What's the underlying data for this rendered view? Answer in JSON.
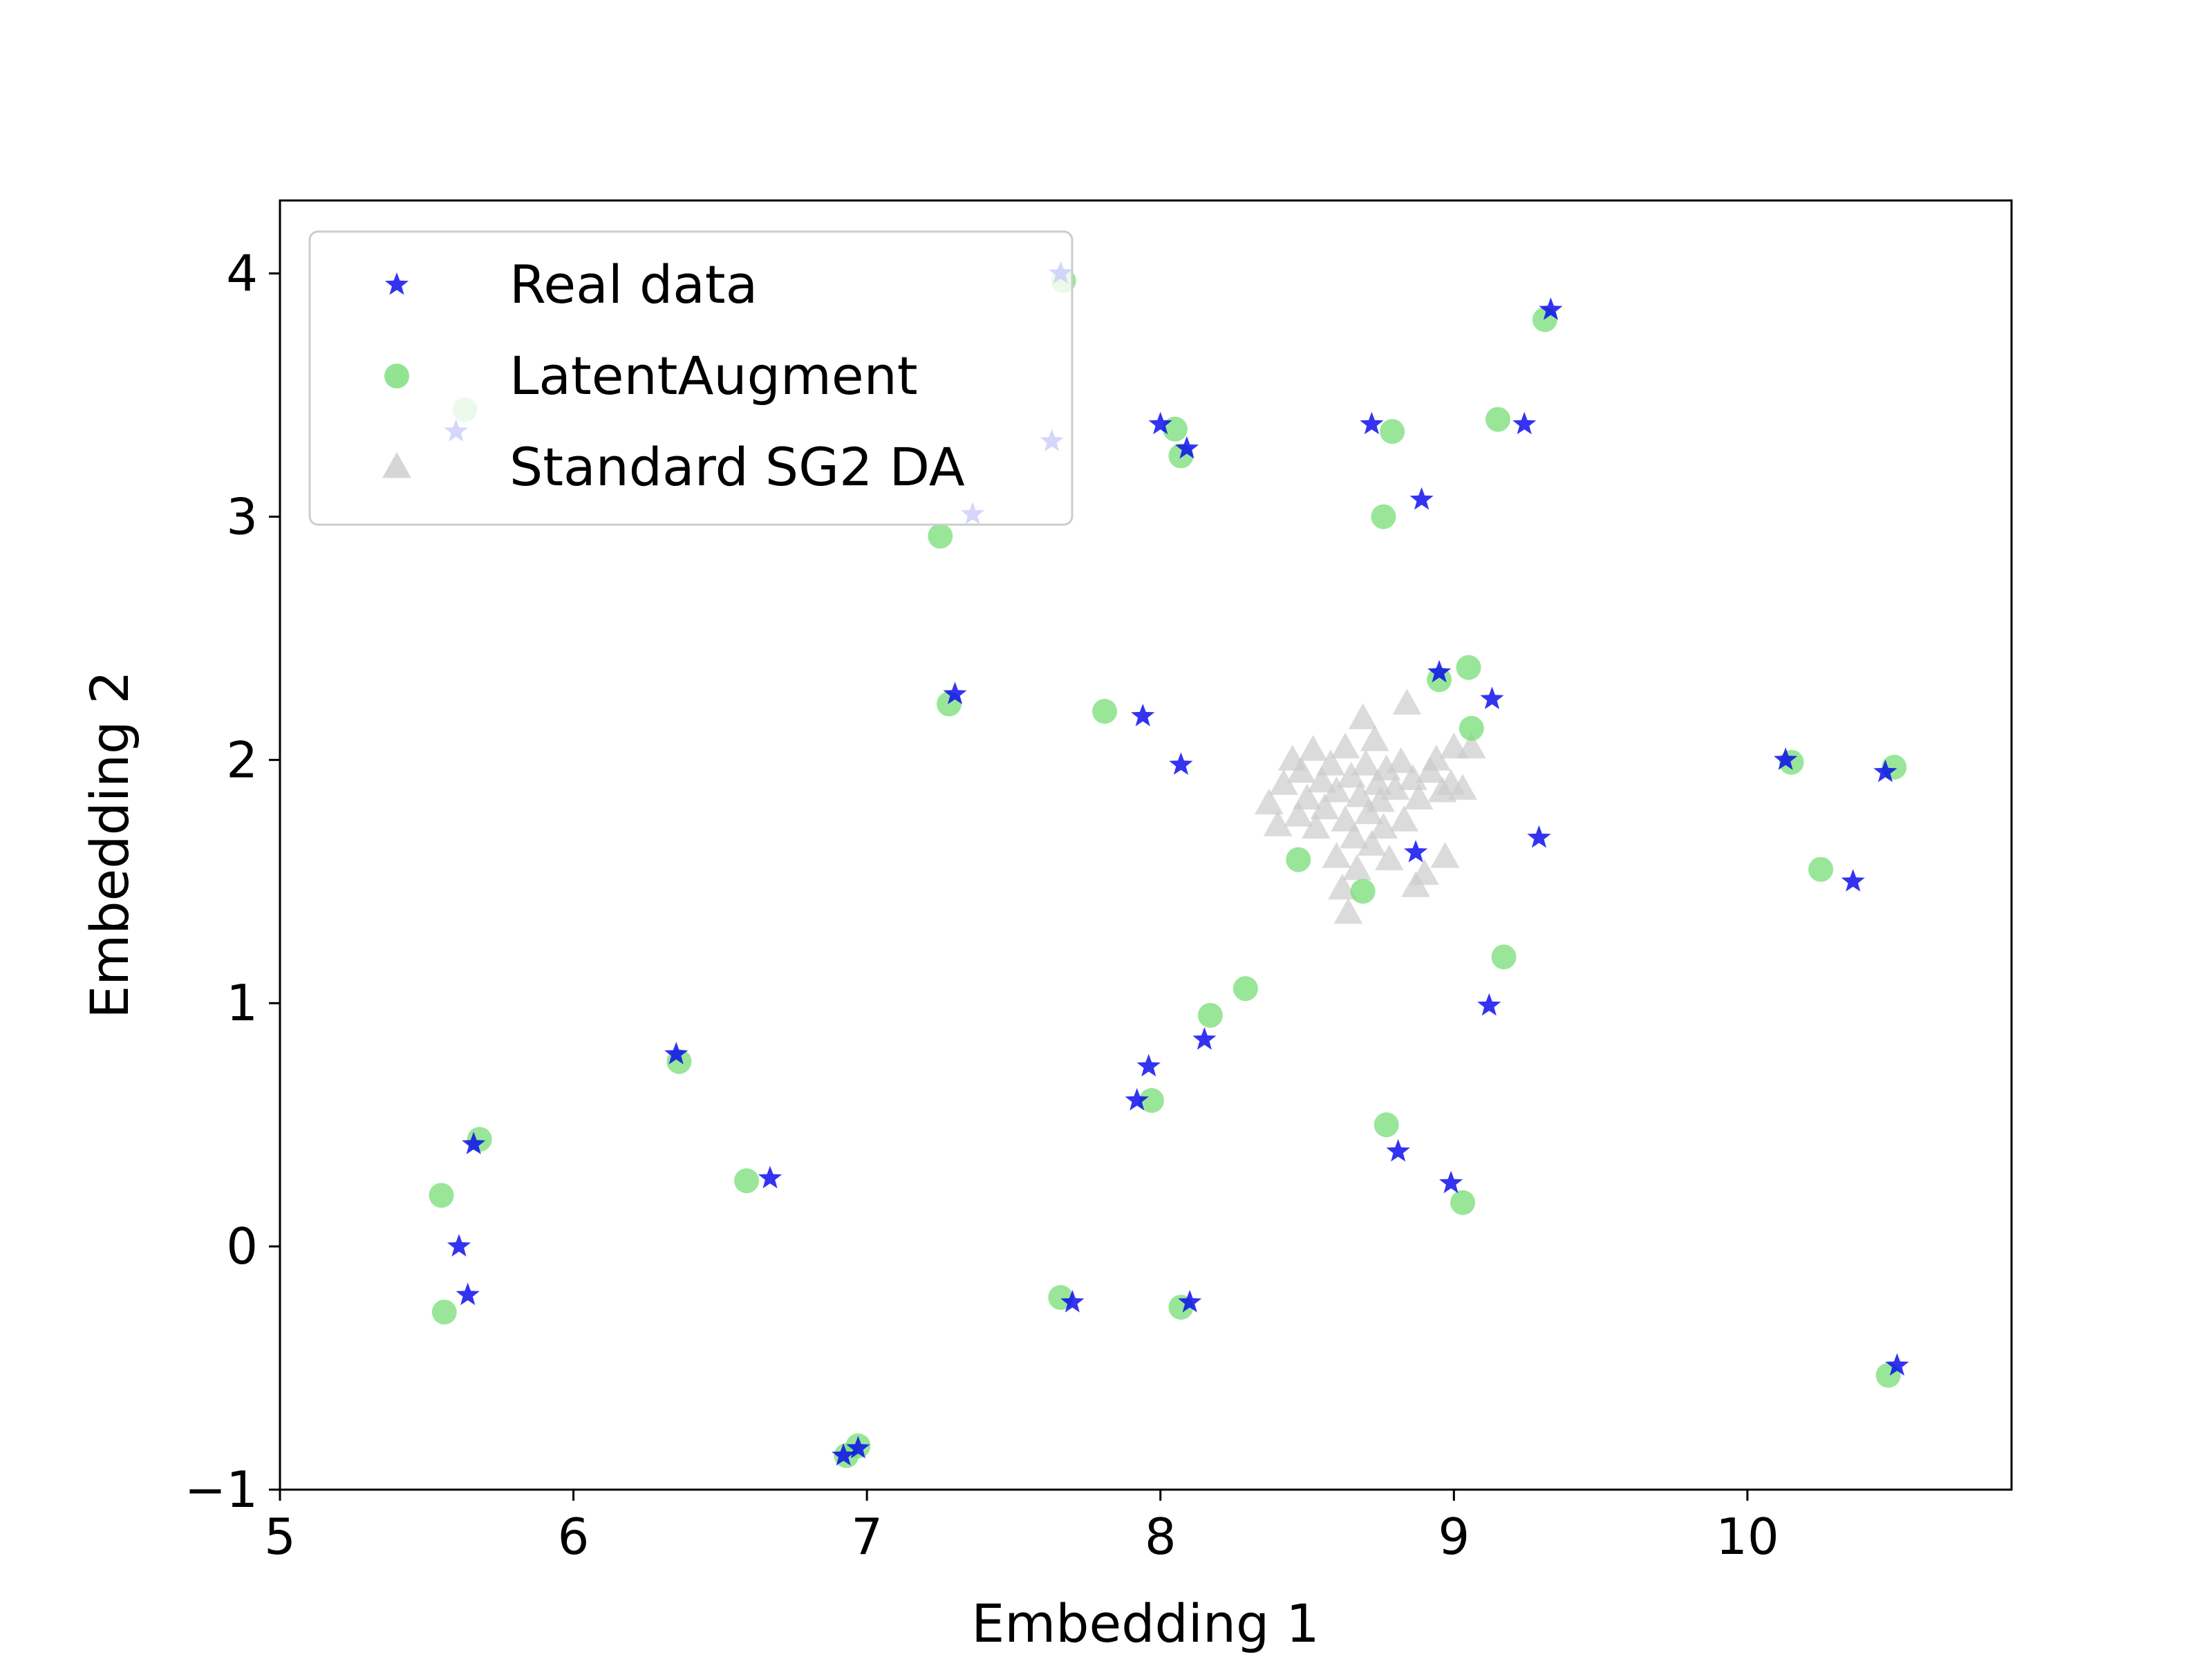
{
  "chart_data": {
    "type": "scatter",
    "title": "",
    "xlabel": "Embedding 1",
    "ylabel": "Embedding 2",
    "xlim": [
      5,
      10.9
    ],
    "ylim": [
      -1,
      4.3
    ],
    "xticks": [
      5,
      6,
      7,
      8,
      9,
      10
    ],
    "yticks": [
      -1,
      0,
      1,
      2,
      3,
      4
    ],
    "xtick_labels": [
      "5",
      "6",
      "7",
      "8",
      "9",
      "10"
    ],
    "ytick_labels": [
      "−1",
      "0",
      "1",
      "2",
      "3",
      "4"
    ],
    "grid": false,
    "legend": {
      "location": "upper-left"
    },
    "series": [
      {
        "name": "Real data",
        "marker": "star",
        "color": "#0000ee",
        "alpha": 0.8,
        "points": [
          [
            5.6,
            3.35
          ],
          [
            5.61,
            0.0
          ],
          [
            5.64,
            -0.2
          ],
          [
            5.66,
            0.42
          ],
          [
            6.35,
            0.79
          ],
          [
            6.67,
            0.28
          ],
          [
            6.92,
            -0.86
          ],
          [
            6.97,
            -0.83
          ],
          [
            7.3,
            2.27
          ],
          [
            7.36,
            3.01
          ],
          [
            7.63,
            3.31
          ],
          [
            7.66,
            4.0
          ],
          [
            7.7,
            -0.23
          ],
          [
            7.92,
            0.6
          ],
          [
            7.94,
            2.18
          ],
          [
            7.96,
            0.74
          ],
          [
            8.0,
            3.38
          ],
          [
            8.07,
            1.98
          ],
          [
            8.09,
            3.28
          ],
          [
            8.1,
            -0.23
          ],
          [
            8.15,
            0.85
          ],
          [
            8.72,
            3.38
          ],
          [
            8.81,
            0.39
          ],
          [
            8.87,
            1.62
          ],
          [
            8.89,
            3.07
          ],
          [
            8.95,
            2.36
          ],
          [
            8.99,
            0.26
          ],
          [
            9.12,
            0.99
          ],
          [
            9.13,
            2.25
          ],
          [
            9.24,
            3.38
          ],
          [
            9.29,
            1.68
          ],
          [
            9.33,
            3.85
          ],
          [
            10.13,
            2.0
          ],
          [
            10.36,
            1.5
          ],
          [
            10.47,
            1.95
          ],
          [
            10.51,
            -0.49
          ]
        ]
      },
      {
        "name": "LatentAugment",
        "marker": "circle",
        "color": "#77dd77",
        "alpha": 0.75,
        "points": [
          [
            5.55,
            0.21
          ],
          [
            5.56,
            -0.27
          ],
          [
            5.63,
            3.44
          ],
          [
            5.68,
            0.44
          ],
          [
            6.36,
            0.76
          ],
          [
            6.59,
            0.27
          ],
          [
            6.93,
            -0.86
          ],
          [
            6.97,
            -0.82
          ],
          [
            7.25,
            2.92
          ],
          [
            7.28,
            2.23
          ],
          [
            7.66,
            -0.21
          ],
          [
            7.67,
            3.97
          ],
          [
            7.81,
            2.2
          ],
          [
            7.97,
            0.6
          ],
          [
            8.05,
            3.36
          ],
          [
            8.07,
            3.25
          ],
          [
            8.07,
            -0.25
          ],
          [
            8.17,
            0.95
          ],
          [
            8.29,
            1.06
          ],
          [
            8.47,
            1.59
          ],
          [
            8.69,
            1.46
          ],
          [
            8.76,
            3.0
          ],
          [
            8.77,
            0.5
          ],
          [
            8.79,
            3.35
          ],
          [
            8.95,
            2.33
          ],
          [
            9.03,
            0.18
          ],
          [
            9.05,
            2.38
          ],
          [
            9.06,
            2.13
          ],
          [
            9.15,
            3.4
          ],
          [
            9.17,
            1.19
          ],
          [
            9.31,
            3.81
          ],
          [
            10.15,
            1.99
          ],
          [
            10.25,
            1.55
          ],
          [
            10.48,
            -0.53
          ],
          [
            10.5,
            1.97
          ]
        ]
      },
      {
        "name": "Standard SG2 DA",
        "marker": "triangle",
        "color": "#cccccc",
        "alpha": 0.7,
        "points": [
          [
            8.37,
            1.82
          ],
          [
            8.4,
            1.73
          ],
          [
            8.42,
            1.9
          ],
          [
            8.45,
            2.0
          ],
          [
            8.47,
            1.77
          ],
          [
            8.48,
            1.95
          ],
          [
            8.5,
            1.84
          ],
          [
            8.52,
            2.04
          ],
          [
            8.53,
            1.72
          ],
          [
            8.55,
            1.91
          ],
          [
            8.56,
            1.8
          ],
          [
            8.58,
            1.98
          ],
          [
            8.6,
            1.6
          ],
          [
            8.6,
            1.87
          ],
          [
            8.62,
            1.47
          ],
          [
            8.63,
            2.05
          ],
          [
            8.63,
            1.75
          ],
          [
            8.64,
            1.37
          ],
          [
            8.65,
            1.93
          ],
          [
            8.66,
            1.68
          ],
          [
            8.67,
            1.55
          ],
          [
            8.68,
            1.85
          ],
          [
            8.69,
            2.17
          ],
          [
            8.7,
            1.98
          ],
          [
            8.71,
            1.78
          ],
          [
            8.72,
            1.65
          ],
          [
            8.73,
            2.08
          ],
          [
            8.74,
            1.9
          ],
          [
            8.75,
            1.83
          ],
          [
            8.76,
            1.72
          ],
          [
            8.77,
            1.96
          ],
          [
            8.78,
            1.59
          ],
          [
            8.8,
            1.88
          ],
          [
            8.82,
            1.99
          ],
          [
            8.83,
            1.75
          ],
          [
            8.84,
            2.23
          ],
          [
            8.86,
            1.92
          ],
          [
            8.87,
            1.48
          ],
          [
            8.88,
            1.84
          ],
          [
            8.9,
            1.53
          ],
          [
            8.92,
            1.95
          ],
          [
            8.94,
            2.0
          ],
          [
            8.96,
            1.87
          ],
          [
            8.97,
            1.6
          ],
          [
            8.99,
            1.9
          ],
          [
            9.0,
            2.05
          ],
          [
            9.03,
            1.88
          ],
          [
            9.06,
            2.05
          ]
        ]
      }
    ]
  }
}
